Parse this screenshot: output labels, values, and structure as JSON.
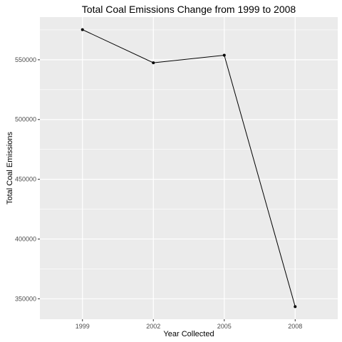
{
  "chart_data": {
    "type": "line",
    "title": "Total Coal Emissions Change from 1999 to 2008",
    "xlabel": "Year Collected",
    "ylabel": "Total Coal Emissions",
    "categories": [
      "1999",
      "2002",
      "2005",
      "2008"
    ],
    "series": [
      {
        "values": [
          575200,
          547500,
          553800,
          343400
        ]
      }
    ],
    "ylim": [
      332900,
      585700
    ],
    "yticks": [
      350000,
      400000,
      450000,
      500000,
      550000
    ],
    "y_tick_labels": [
      "350000",
      "400000",
      "450000",
      "500000",
      "550000"
    ],
    "grid": true,
    "panel_color": "#ebebeb",
    "grid_color": "#ffffff",
    "line_color": "#000000",
    "point_color": "#000000"
  }
}
